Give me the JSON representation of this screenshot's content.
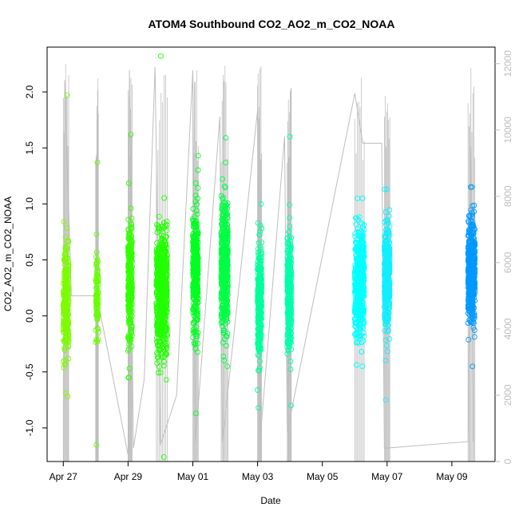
{
  "chart_data": {
    "type": "scatter",
    "title": "ATOM4 Southbound CO2_AO2_m_CO2_NOAA",
    "xlabel": "Date",
    "ylabel": "CO2_AO2_m_CO2_NOAA",
    "x_ticks": [
      "Apr 27",
      "Apr 29",
      "May 01",
      "May 03",
      "May 05",
      "May 07",
      "May 09"
    ],
    "y_ticks": [
      "-1.0",
      "-0.5",
      "0.0",
      "0.5",
      "1.0",
      "1.5",
      "2.0"
    ],
    "y2_ticks": [
      "0",
      "2000",
      "4000",
      "6000",
      "8000",
      "10000",
      "12000"
    ],
    "xlim": [
      "2018-04-26T12:00",
      "2018-05-10T08:00"
    ],
    "ylim": [
      -1.3,
      2.4
    ],
    "y2lim": [
      0,
      12500
    ],
    "grid": false,
    "secondary_series": {
      "description": "altitude trace (grey line, right axis)",
      "color": "#bebebe",
      "points": [
        [
          "2018-04-27T00:30",
          0
        ],
        [
          "2018-04-27T01:00",
          11500
        ],
        [
          "2018-04-27T06:00",
          5000
        ],
        [
          "2018-04-28T00:00",
          5000
        ],
        [
          "2018-04-28T00:30",
          3600
        ],
        [
          "2018-04-28T01:00",
          5000
        ],
        [
          "2018-04-29T00:00",
          200
        ],
        [
          "2018-04-29T01:00",
          11800
        ],
        [
          "2018-04-29T04:00",
          400
        ],
        [
          "2018-04-29T12:00",
          2500
        ],
        [
          "2018-04-29T20:00",
          11900
        ],
        [
          "2018-04-30T00:00",
          500
        ],
        [
          "2018-04-30T12:00",
          2000
        ],
        [
          "2018-05-01T00:00",
          11800
        ],
        [
          "2018-05-01T02:00",
          600
        ],
        [
          "2018-05-01T20:00",
          10400
        ],
        [
          "2018-05-01T22:00",
          600
        ],
        [
          "2018-05-03T00:00",
          10600
        ],
        [
          "2018-05-03T02:00",
          700
        ],
        [
          "2018-05-03T20:00",
          9800
        ],
        [
          "2018-05-03T22:00",
          900
        ],
        [
          "2018-05-06T00:00",
          11100
        ],
        [
          "2018-05-06T06:00",
          9600
        ],
        [
          "2018-05-06T20:00",
          9600
        ],
        [
          "2018-05-06T22:00",
          400
        ],
        [
          "2018-05-09T12:00",
          600
        ],
        [
          "2018-05-09T14:00",
          9500
        ],
        [
          "2018-05-09T16:00",
          600
        ]
      ]
    },
    "series": [
      {
        "date": "2018-04-27T00:00",
        "span_hours": 4,
        "color": "#7cfc00",
        "y_center": 0.15,
        "y_spread": 0.4,
        "y_min": -0.72,
        "y_max": 1.97,
        "n": 260
      },
      {
        "date": "2018-04-28T00:00",
        "span_hours": 2,
        "color": "#66ff00",
        "y_center": 0.15,
        "y_spread": 0.3,
        "y_min": -1.15,
        "y_max": 1.37,
        "n": 90
      },
      {
        "date": "2018-04-29T00:00",
        "span_hours": 3,
        "color": "#33ff00",
        "y_center": 0.3,
        "y_spread": 0.45,
        "y_min": -0.55,
        "y_max": 1.62,
        "n": 300
      },
      {
        "date": "2018-04-29T21:00",
        "span_hours": 8,
        "color": "#22ff00",
        "y_center": 0.2,
        "y_spread": 0.45,
        "y_min": -1.26,
        "y_max": 2.32,
        "n": 700
      },
      {
        "date": "2018-05-01T00:00",
        "span_hours": 4,
        "color": "#00ff22",
        "y_center": 0.4,
        "y_spread": 0.45,
        "y_min": -0.87,
        "y_max": 1.43,
        "n": 400
      },
      {
        "date": "2018-05-01T21:00",
        "span_hours": 5,
        "color": "#00ff44",
        "y_center": 0.45,
        "y_spread": 0.45,
        "y_min": -0.45,
        "y_max": 1.59,
        "n": 500
      },
      {
        "date": "2018-05-03T00:00",
        "span_hours": 3,
        "color": "#00ff99",
        "y_center": 0.15,
        "y_spread": 0.4,
        "y_min": -0.82,
        "y_max": 1.0,
        "n": 380
      },
      {
        "date": "2018-05-03T22:00",
        "span_hours": 3,
        "color": "#00ffaa",
        "y_center": 0.2,
        "y_spread": 0.4,
        "y_min": -0.8,
        "y_max": 1.6,
        "n": 380
      },
      {
        "date": "2018-05-06T00:00",
        "span_hours": 7,
        "color": "#00ffff",
        "y_center": 0.3,
        "y_spread": 0.4,
        "y_min": -0.45,
        "y_max": 1.05,
        "n": 500
      },
      {
        "date": "2018-05-06T22:00",
        "span_hours": 4,
        "color": "#11eeff",
        "y_center": 0.35,
        "y_spread": 0.4,
        "y_min": -0.75,
        "y_max": 1.13,
        "n": 380
      },
      {
        "date": "2018-05-09T12:00",
        "span_hours": 5,
        "color": "#0099ff",
        "y_center": 0.4,
        "y_spread": 0.35,
        "y_min": -0.45,
        "y_max": 1.15,
        "n": 520
      }
    ]
  }
}
